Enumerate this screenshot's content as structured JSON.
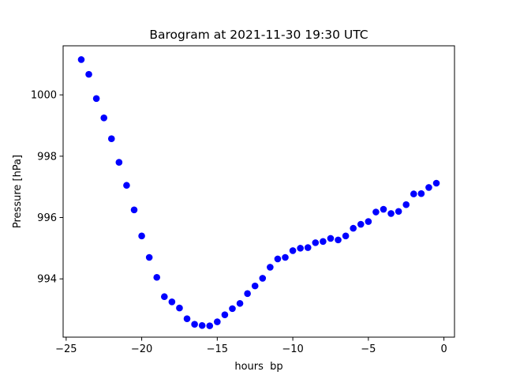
{
  "chart_data": {
    "type": "scatter",
    "title": "Barogram at 2021-11-30 19:30 UTC",
    "xlabel": "hours  bp",
    "ylabel": "Pressure [hPa]",
    "xlim": [
      -25.2,
      0.7
    ],
    "ylim": [
      992.1,
      1001.6
    ],
    "xticks": [
      -25,
      -20,
      -15,
      -10,
      -5,
      0
    ],
    "yticks": [
      994,
      996,
      998,
      1000
    ],
    "grid": false,
    "marker_color": "#0000ff",
    "series": [
      {
        "x": [
          -24,
          -23.5,
          -23,
          -22.5,
          -22,
          -21.5,
          -21,
          -20.5,
          -20,
          -19.5,
          -19,
          -18.5,
          -18,
          -17.5,
          -17,
          -16.5,
          -16,
          -15.5,
          -15,
          -14.5,
          -14,
          -13.5,
          -13,
          -12.5,
          -12,
          -11.5,
          -11,
          -10.5,
          -10,
          -9.5,
          -9,
          -8.5,
          -8,
          -7.5,
          -7,
          -6.5,
          -6,
          -5.5,
          -5,
          -4.5,
          -4,
          -3.5,
          -3,
          -2.5,
          -2,
          -1.5,
          -1,
          -0.5
        ],
        "y": [
          1001.15,
          1000.67,
          999.88,
          999.25,
          998.57,
          997.8,
          997.05,
          996.25,
          995.4,
          994.7,
          994.05,
          993.42,
          993.25,
          993.05,
          992.7,
          992.52,
          992.48,
          992.47,
          992.6,
          992.83,
          993.03,
          993.2,
          993.52,
          993.77,
          994.02,
          994.38,
          994.65,
          994.7,
          994.92,
          995.0,
          995.02,
          995.18,
          995.22,
          995.32,
          995.27,
          995.4,
          995.65,
          995.78,
          995.87,
          996.18,
          996.27,
          996.13,
          996.2,
          996.42,
          996.77,
          996.78,
          996.98,
          997.12
        ]
      }
    ]
  }
}
